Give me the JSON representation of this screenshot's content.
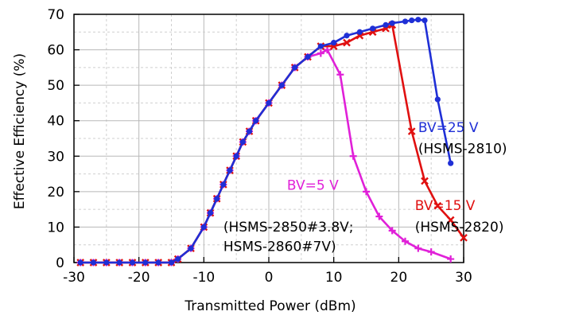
{
  "chart_data": {
    "type": "line",
    "xlabel": "Transmitted Power (dBm)",
    "ylabel": "Effective Efficiency (%)",
    "xlim": [
      -30,
      30
    ],
    "ylim": [
      0,
      70
    ],
    "x_ticks": [
      -30,
      -20,
      -10,
      0,
      10,
      20,
      30
    ],
    "y_ticks": [
      0,
      10,
      20,
      30,
      40,
      50,
      60,
      70
    ],
    "x_tick_labels": [
      "-30",
      "-20",
      "-10",
      "0",
      "10",
      "20",
      "30"
    ],
    "y_tick_labels": [
      "0",
      "10",
      "20",
      "30",
      "40",
      "50",
      "60",
      "70"
    ],
    "grid": true,
    "series": [
      {
        "name": "BV=25 V",
        "color": "#1f2fd6",
        "marker": "circle",
        "x": [
          -29,
          -27,
          -25,
          -23,
          -21,
          -19,
          -17,
          -15,
          -14,
          -12,
          -10,
          -9,
          -8,
          -7,
          -6,
          -5,
          -4,
          -3,
          -2,
          0,
          2,
          4,
          6,
          8,
          10,
          12,
          14,
          16,
          18,
          19,
          21,
          22,
          23,
          24,
          26,
          28
        ],
        "y": [
          0,
          0,
          0,
          0,
          0,
          0,
          0,
          0,
          1,
          4,
          10,
          14,
          18,
          22,
          26,
          30,
          34,
          37,
          40,
          45,
          50,
          55,
          58,
          61,
          62,
          64,
          65,
          66,
          67,
          67.5,
          68,
          68.3,
          68.5,
          68.3,
          46,
          28
        ]
      },
      {
        "name": "BV=15 V",
        "color": "#e01010",
        "marker": "x",
        "x": [
          -29,
          -27,
          -25,
          -23,
          -21,
          -19,
          -17,
          -15,
          -14,
          -12,
          -10,
          -9,
          -8,
          -7,
          -6,
          -5,
          -4,
          -3,
          -2,
          0,
          2,
          4,
          6,
          8,
          10,
          12,
          14,
          16,
          18,
          19,
          22,
          24,
          26,
          28,
          30
        ],
        "y": [
          0,
          0,
          0,
          0,
          0,
          0,
          0,
          0,
          1,
          4,
          10,
          14,
          18,
          22,
          26,
          30,
          34,
          37,
          40,
          45,
          50,
          55,
          58,
          61,
          61,
          62,
          64,
          65,
          66,
          67,
          37,
          23,
          16,
          12,
          7
        ]
      },
      {
        "name": "BV=5 V",
        "color": "#e020d8",
        "marker": "plus",
        "x": [
          -29,
          -27,
          -25,
          -23,
          -21,
          -19,
          -17,
          -15,
          -14,
          -12,
          -10,
          -9,
          -8,
          -7,
          -6,
          -5,
          -4,
          -3,
          -2,
          0,
          2,
          4,
          6,
          8,
          9,
          11,
          13,
          15,
          17,
          19,
          21,
          23,
          25,
          28
        ],
        "y": [
          0,
          0,
          0,
          0,
          0,
          0,
          0,
          0,
          1,
          4,
          10,
          14,
          18,
          22,
          26,
          30,
          34,
          37,
          40,
          45,
          50,
          55,
          58,
          59,
          60,
          53,
          30,
          20,
          13,
          9,
          6,
          4,
          3,
          1
        ]
      }
    ],
    "annotations": [
      {
        "id": "bv25",
        "text": "BV=25 V",
        "color": "#1f2fd6",
        "x": 23,
        "y": 36.8
      },
      {
        "id": "bv25-part",
        "text": "(HSMS-2810)",
        "color": "#000000",
        "x": 23,
        "y": 30.8
      },
      {
        "id": "bv15",
        "text": "BV=15 V",
        "color": "#e01010",
        "x": 22.5,
        "y": 14.8
      },
      {
        "id": "bv15-part",
        "text": "(HSMS-2820)",
        "color": "#000000",
        "x": 22.5,
        "y": 8.8
      },
      {
        "id": "bv5",
        "text": "BV=5 V",
        "color": "#e020d8",
        "x": 2.8,
        "y": 20.5
      },
      {
        "id": "bv5-part1",
        "text": "(HSMS-2850#3.8V;",
        "color": "#000000",
        "x": -7,
        "y": 8.8
      },
      {
        "id": "bv5-part2",
        "text": "HSMS-2860#7V)",
        "color": "#000000",
        "x": -7,
        "y": 3.3
      }
    ]
  }
}
